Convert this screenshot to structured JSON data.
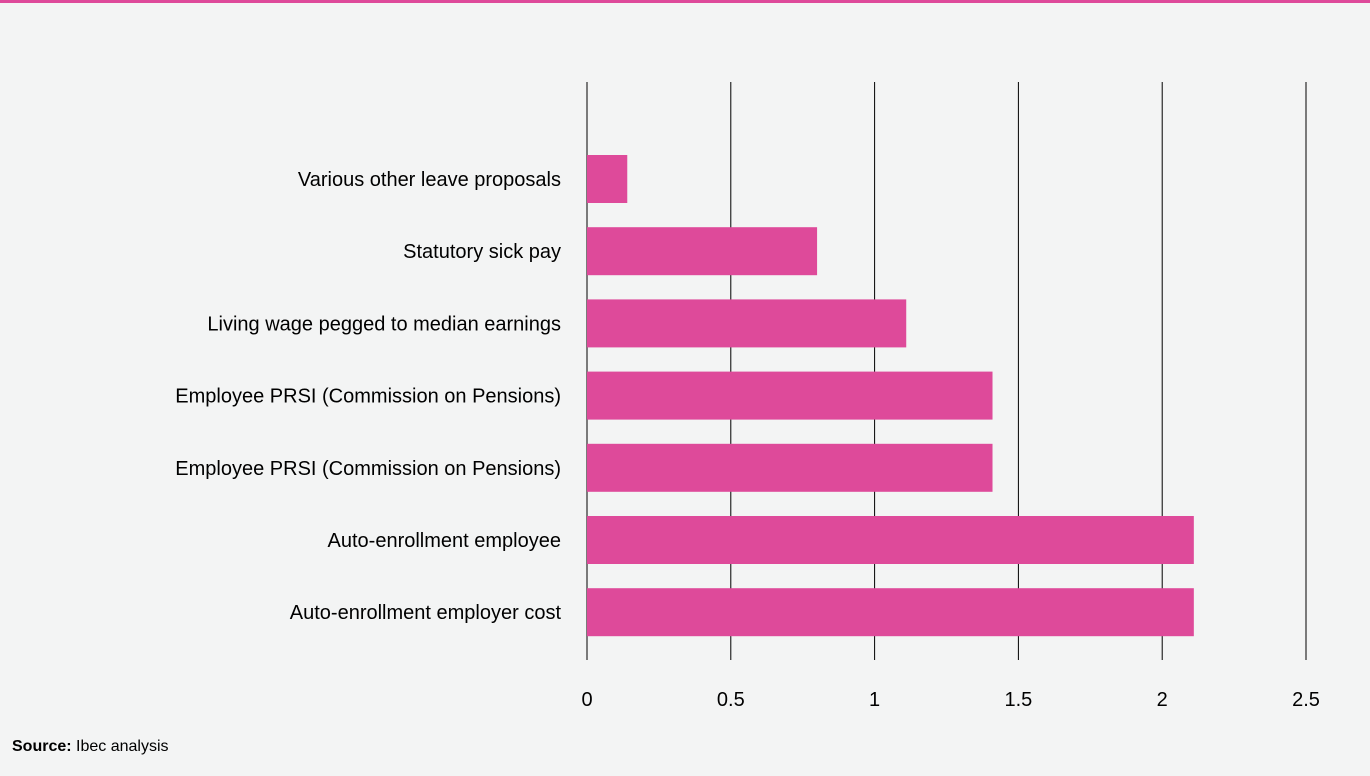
{
  "chart_data": {
    "type": "bar",
    "orientation": "horizontal",
    "categories": [
      "Various other leave proposals",
      "Statutory sick pay",
      "Living wage pegged to median earnings",
      "Employee PRSI (Commission on Pensions)",
      "Employee PRSI (Commission on Pensions)",
      "Auto-enrollment employee",
      "Auto-enrollment employer cost"
    ],
    "values": [
      0.14,
      0.8,
      1.11,
      1.41,
      1.41,
      2.11,
      2.11
    ],
    "xlim": [
      0,
      2.5
    ],
    "x_ticks": [
      "0",
      "0.5",
      "1",
      "1.5",
      "2",
      "2.5"
    ],
    "grid": "vertical",
    "bar_color": "#de4a9a",
    "title": "",
    "xlabel": "",
    "ylabel": ""
  },
  "source": {
    "label": "Source:",
    "text": "Ibec analysis"
  }
}
